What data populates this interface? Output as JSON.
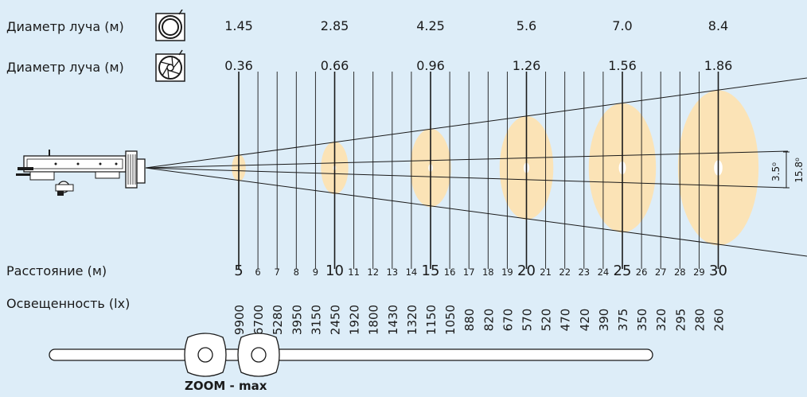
{
  "rows": {
    "beam_diameter_wide_label": "Диаметр луча (м)",
    "beam_diameter_narrow_label": "Диаметр луча (м)",
    "distance_label": "Расстояние (м)",
    "illuminance_label": "Освещенность (lx)"
  },
  "icons": {
    "wide": "open-aperture-icon",
    "narrow": "iris-shutter-icon",
    "fixture": "spotlight-fixture-icon"
  },
  "zoom_caption": "ZOOM  -  max",
  "angles": {
    "inner": "3.5⁰",
    "outer": "15.8⁰"
  },
  "colors": {
    "background": "#ddedf8",
    "spot": "#fbe3b6",
    "line": "#1a1a1a"
  },
  "chart_data": {
    "type": "table",
    "distance_m": [
      5,
      6,
      7,
      8,
      9,
      10,
      11,
      12,
      13,
      14,
      15,
      16,
      17,
      18,
      19,
      20,
      21,
      22,
      23,
      24,
      25,
      26,
      27,
      28,
      29,
      30
    ],
    "illuminance_lx": [
      9900,
      6700,
      5280,
      3950,
      3150,
      2450,
      1920,
      1800,
      1430,
      1320,
      1150,
      1050,
      880,
      820,
      670,
      570,
      520,
      470,
      420,
      390,
      375,
      350,
      320,
      295,
      280,
      260
    ],
    "beam_diameter_wide_m": {
      "distances": [
        5,
        10,
        15,
        20,
        25,
        30
      ],
      "values": [
        "1.45",
        "2.85",
        "4.25",
        "5.6",
        "7.0",
        "8.4"
      ]
    },
    "beam_diameter_narrow_m": {
      "distances": [
        5,
        10,
        15,
        20,
        25,
        30
      ],
      "values": [
        "0.36",
        "0.66",
        "0.96",
        "1.26",
        "1.56",
        "1.86"
      ]
    }
  }
}
